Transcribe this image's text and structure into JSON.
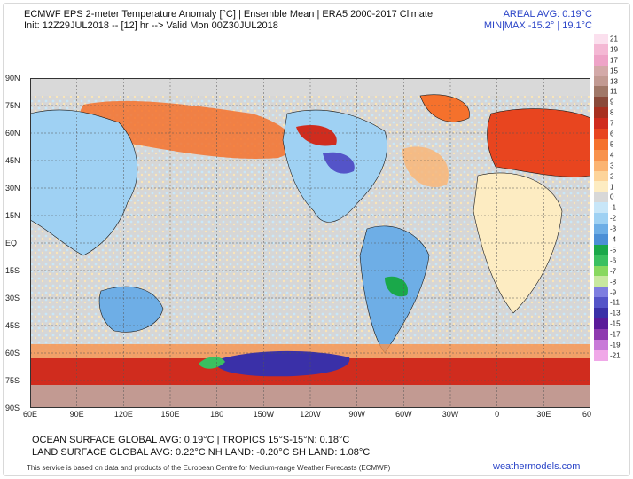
{
  "header": {
    "title": "ECMWF EPS 2-meter Temperature Anomaly [°C] | Ensemble Mean | ERA5 2000-2017 Climate",
    "init": "Init: 12Z29JUL2018 -- [12] hr --> Valid Mon 00Z30JUL2018",
    "areal_avg": "AREAL AVG: 0.19°C",
    "minmax": "MIN|MAX -15.2° | 19.1°C"
  },
  "map": {
    "lat_labels": [
      "90N",
      "75N",
      "60N",
      "45N",
      "30N",
      "15N",
      "EQ",
      "15S",
      "30S",
      "45S",
      "60S",
      "75S",
      "90S"
    ],
    "lon_labels": [
      "60E",
      "90E",
      "120E",
      "150E",
      "180",
      "150W",
      "120W",
      "90W",
      "60W",
      "30W",
      "0",
      "30E",
      "60"
    ]
  },
  "colorbar": {
    "labels": [
      "21",
      "19",
      "17",
      "15",
      "13",
      "11",
      "9",
      "8",
      "7",
      "6",
      "5",
      "4",
      "3",
      "2",
      "1",
      "0",
      "-1",
      "-2",
      "-3",
      "-4",
      "-5",
      "-6",
      "-7",
      "-8",
      "-9",
      "-11",
      "-13",
      "-15",
      "-17",
      "-19",
      "-21"
    ],
    "colors": [
      "#fbe0ee",
      "#f4b8d4",
      "#eea3c7",
      "#d3a9a8",
      "#c29a92",
      "#a07868",
      "#8a4a3a",
      "#a83020",
      "#d02c1e",
      "#e8451f",
      "#f5712c",
      "#f8924c",
      "#fbb472",
      "#fdd49a",
      "#fdecc2",
      "#d8d8d8",
      "#c8e6f8",
      "#9fd1f3",
      "#6eaee6",
      "#4c8fd6",
      "#1aa84a",
      "#3ac060",
      "#88d85e",
      "#c8e8a0",
      "#7e7ee0",
      "#5454c8",
      "#3a30a8",
      "#5a1a9a",
      "#8e3ab0",
      "#c87ad8",
      "#f0a8e8"
    ]
  },
  "stats": {
    "line1": "OCEAN SURFACE GLOBAL AVG: 0.19°C  |  TROPICS 15°S-15°N: 0.18°C",
    "line2": "LAND SURFACE GLOBAL AVG: 0.22°C NH LAND: -0.20°C SH LAND: 1.08°C"
  },
  "footer": {
    "attribution": "This service is based on data and products of the European Centre for Medium-range Weather Forecasts (ECMWF)",
    "brand": "weathermodels.com"
  }
}
